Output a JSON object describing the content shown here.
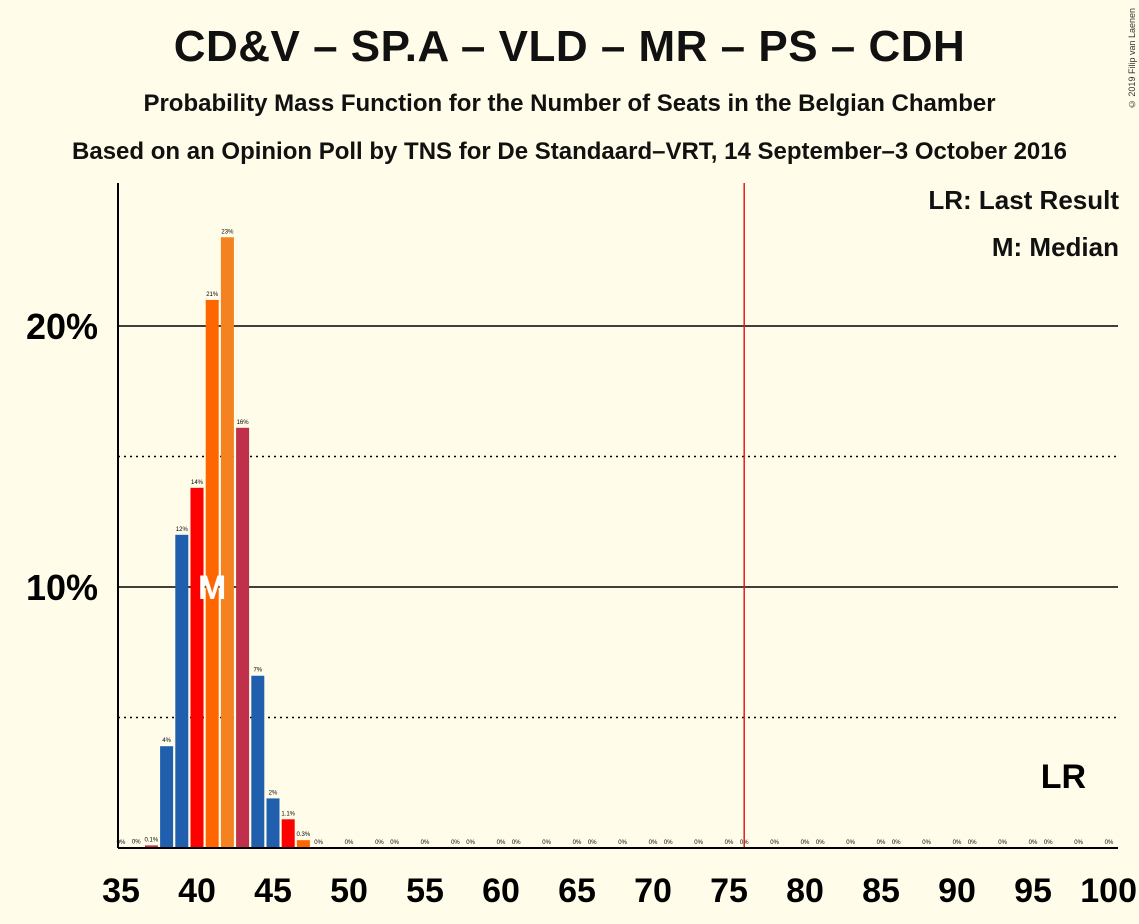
{
  "header": {
    "title": "CD&V – SP.A – VLD – MR – PS – CDH",
    "subtitle": "Probability Mass Function for the Number of Seats in the Belgian Chamber",
    "source": "Based on an Opinion Poll by TNS for De Standaard–VRT, 14 September–3 October 2016",
    "copyright": "© 2019 Filip van Laenen"
  },
  "legend": {
    "lr": "LR: Last Result",
    "median": "M: Median"
  },
  "chart_data": {
    "type": "bar",
    "xlim": [
      35,
      100
    ],
    "ylim": [
      0,
      25
    ],
    "y_ticks": [
      {
        "value": 10,
        "label": "10%"
      },
      {
        "value": 20,
        "label": "20%"
      }
    ],
    "y_dotted": [
      5,
      15
    ],
    "x_ticks": [
      35,
      40,
      45,
      50,
      55,
      60,
      65,
      70,
      75,
      80,
      85,
      90,
      95,
      100
    ],
    "majority_line": 76,
    "median_seat": 41,
    "median_label": "M",
    "last_result_seat": 97,
    "last_result_label": "LR",
    "colors": [
      "#c0304a",
      "#1f5fae",
      "#ff0000",
      "#ff6600",
      "#f58220",
      "#c0304a",
      "#1f5fae",
      "#1f5fae",
      "#ff0000",
      "#ff6600",
      "#f58220"
    ],
    "bars": [
      {
        "seat": 36,
        "value": 0.02,
        "label": "0%",
        "color": "#1f5fae"
      },
      {
        "seat": 37,
        "value": 0.1,
        "label": "0.1%",
        "color": "#c0304a"
      },
      {
        "seat": 38,
        "value": 3.9,
        "label": "4%",
        "color": "#1f5fae"
      },
      {
        "seat": 39,
        "value": 12,
        "label": "12%",
        "color": "#1f5fae"
      },
      {
        "seat": 40,
        "value": 13.8,
        "label": "14%",
        "color": "#ff0000"
      },
      {
        "seat": 41,
        "value": 21,
        "label": "21%",
        "color": "#ff6600"
      },
      {
        "seat": 42,
        "value": 23.4,
        "label": "23%",
        "color": "#f58220"
      },
      {
        "seat": 43,
        "value": 16.1,
        "label": "16%",
        "color": "#c0304a"
      },
      {
        "seat": 44,
        "value": 6.6,
        "label": "7%",
        "color": "#1f5fae"
      },
      {
        "seat": 45,
        "value": 1.9,
        "label": "2%",
        "color": "#1f5fae"
      },
      {
        "seat": 46,
        "value": 1.1,
        "label": "1.1%",
        "color": "#ff0000"
      },
      {
        "seat": 47,
        "value": 0.3,
        "label": "0.3%",
        "color": "#ff6600"
      }
    ],
    "zero_label": "0%",
    "zero_label_seats": [
      35,
      48,
      50,
      52,
      53,
      55,
      57,
      58,
      60,
      61,
      63,
      65,
      66,
      68,
      70,
      71,
      73,
      75,
      76,
      78,
      80,
      81,
      83,
      85,
      86,
      88,
      90,
      91,
      93,
      95,
      96,
      98,
      100
    ]
  }
}
